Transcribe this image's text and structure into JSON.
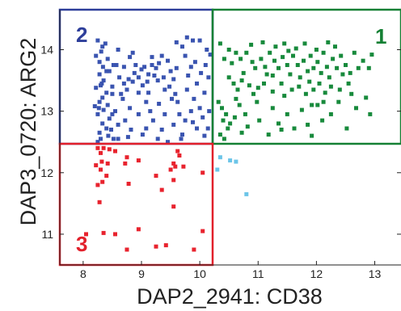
{
  "chart_data": {
    "type": "scatter",
    "xlabel": "DAP2_2941: CD38",
    "ylabel": "DAP3_0720: ARG2",
    "xlim": [
      7.6,
      13.45
    ],
    "ylim": [
      10.5,
      14.65
    ],
    "x_ticks": [
      "8",
      "9",
      "10",
      "11",
      "12",
      "13"
    ],
    "y_ticks": [
      "11",
      "12",
      "13",
      "14"
    ],
    "grid": false,
    "legend": "none",
    "gates": [
      {
        "label": "2",
        "color": "#2d3e9a",
        "x_range": [
          7.6,
          10.22
        ],
        "y_range": [
          12.47,
          14.65
        ],
        "label_pos": "top-left"
      },
      {
        "label": "1",
        "color": "#158034",
        "x_range": [
          10.22,
          13.45
        ],
        "y_range": [
          12.47,
          14.65
        ],
        "label_pos": "top-right"
      },
      {
        "label": "3",
        "color": "#e2202b",
        "x_range": [
          7.6,
          10.22
        ],
        "y_range": [
          10.5,
          12.47
        ],
        "label_pos": "bottom-left"
      }
    ],
    "series": [
      {
        "color": "#3a54b0",
        "points": [
          [
            8.25,
            14.15
          ],
          [
            8.33,
            14.05
          ],
          [
            8.31,
            13.97
          ],
          [
            8.22,
            13.9
          ],
          [
            8.42,
            13.85
          ],
          [
            8.28,
            13.8
          ],
          [
            8.34,
            13.72
          ],
          [
            8.52,
            13.75
          ],
          [
            8.4,
            13.65
          ],
          [
            8.28,
            13.6
          ],
          [
            8.35,
            13.5
          ],
          [
            8.3,
            13.42
          ],
          [
            8.22,
            13.38
          ],
          [
            8.4,
            13.3
          ],
          [
            8.5,
            13.4
          ],
          [
            8.33,
            13.22
          ],
          [
            8.28,
            13.15
          ],
          [
            8.42,
            13.1
          ],
          [
            8.35,
            13.02
          ],
          [
            8.25,
            12.95
          ],
          [
            8.5,
            12.95
          ],
          [
            8.45,
            12.88
          ],
          [
            8.33,
            12.8
          ],
          [
            8.4,
            12.72
          ],
          [
            8.28,
            12.65
          ],
          [
            8.43,
            12.6
          ],
          [
            8.3,
            12.55
          ],
          [
            8.52,
            12.55
          ],
          [
            8.25,
            12.5
          ],
          [
            8.55,
            13.0
          ],
          [
            8.2,
            13.08
          ],
          [
            8.45,
            13.65
          ],
          [
            8.62,
            13.55
          ],
          [
            8.7,
            13.45
          ],
          [
            8.75,
            13.35
          ],
          [
            8.68,
            13.2
          ],
          [
            8.8,
            13.05
          ],
          [
            8.72,
            12.85
          ],
          [
            8.82,
            12.7
          ],
          [
            8.77,
            12.58
          ],
          [
            8.6,
            12.55
          ],
          [
            8.78,
            13.52
          ],
          [
            8.85,
            13.48
          ],
          [
            8.88,
            13.62
          ],
          [
            8.95,
            13.55
          ],
          [
            9.0,
            13.68
          ],
          [
            9.05,
            13.72
          ],
          [
            9.12,
            13.6
          ],
          [
            9.18,
            13.75
          ],
          [
            9.25,
            13.7
          ],
          [
            9.3,
            13.78
          ],
          [
            9.22,
            13.58
          ],
          [
            9.1,
            13.48
          ],
          [
            9.02,
            13.42
          ],
          [
            8.95,
            13.3
          ],
          [
            9.08,
            13.15
          ],
          [
            9.15,
            13.0
          ],
          [
            9.2,
            12.85
          ],
          [
            9.08,
            12.72
          ],
          [
            9.02,
            12.62
          ],
          [
            9.28,
            12.55
          ],
          [
            9.35,
            12.7
          ],
          [
            9.3,
            13.12
          ],
          [
            9.4,
            13.35
          ],
          [
            9.38,
            13.55
          ],
          [
            9.45,
            13.82
          ],
          [
            9.5,
            13.65
          ],
          [
            9.55,
            13.52
          ],
          [
            9.48,
            13.4
          ],
          [
            9.58,
            13.28
          ],
          [
            9.62,
            13.15
          ],
          [
            9.65,
            12.95
          ],
          [
            9.55,
            12.78
          ],
          [
            9.7,
            12.62
          ],
          [
            9.68,
            12.55
          ],
          [
            9.75,
            12.85
          ],
          [
            9.78,
            13.35
          ],
          [
            9.8,
            13.58
          ],
          [
            9.85,
            13.72
          ],
          [
            9.75,
            13.9
          ],
          [
            9.7,
            14.05
          ],
          [
            9.88,
            14.15
          ],
          [
            9.92,
            13.8
          ],
          [
            9.95,
            13.45
          ],
          [
            9.9,
            13.2
          ],
          [
            10.0,
            13.05
          ],
          [
            10.05,
            12.9
          ],
          [
            10.08,
            13.3
          ],
          [
            10.02,
            13.62
          ],
          [
            10.1,
            13.75
          ],
          [
            10.12,
            14.0
          ],
          [
            10.15,
            13.55
          ],
          [
            10.16,
            13.0
          ],
          [
            10.14,
            12.72
          ],
          [
            10.08,
            12.6
          ],
          [
            8.7,
            13.72
          ],
          [
            8.9,
            13.75
          ],
          [
            9.28,
            13.5
          ],
          [
            9.52,
            13.2
          ],
          [
            9.12,
            13.3
          ],
          [
            8.6,
            14.0
          ],
          [
            8.57,
            13.75
          ],
          [
            9.85,
            13.0
          ],
          [
            9.95,
            12.72
          ],
          [
            8.95,
            12.95
          ],
          [
            9.45,
            12.5
          ],
          [
            8.6,
            12.78
          ],
          [
            9.6,
            13.7
          ],
          [
            10.0,
            14.15
          ],
          [
            8.85,
            13.95
          ],
          [
            9.6,
            14.12
          ],
          [
            9.35,
            13.9
          ],
          [
            8.38,
            14.1
          ],
          [
            8.48,
            12.7
          ],
          [
            8.32,
            13.45
          ],
          [
            9.78,
            14.2
          ],
          [
            8.65,
            13.28
          ],
          [
            9.18,
            13.88
          ],
          [
            8.5,
            13.28
          ],
          [
            9.4,
            12.95
          ],
          [
            8.8,
            13.88
          ],
          [
            10.18,
            13.92
          ],
          [
            9.88,
            12.82
          ],
          [
            8.27,
            13.05
          ]
        ]
      },
      {
        "color": "#188a3c",
        "points": [
          [
            10.35,
            14.1
          ],
          [
            10.5,
            14.0
          ],
          [
            10.62,
            13.95
          ],
          [
            10.42,
            13.85
          ],
          [
            10.55,
            13.78
          ],
          [
            10.7,
            13.85
          ],
          [
            10.8,
            13.95
          ],
          [
            10.9,
            13.8
          ],
          [
            10.95,
            13.7
          ],
          [
            11.05,
            13.85
          ],
          [
            11.12,
            13.72
          ],
          [
            11.2,
            13.95
          ],
          [
            11.15,
            13.6
          ],
          [
            11.28,
            13.82
          ],
          [
            11.35,
            13.7
          ],
          [
            11.42,
            13.88
          ],
          [
            11.5,
            13.75
          ],
          [
            11.55,
            13.6
          ],
          [
            11.6,
            13.9
          ],
          [
            11.68,
            13.75
          ],
          [
            11.72,
            13.55
          ],
          [
            11.78,
            13.82
          ],
          [
            11.85,
            13.65
          ],
          [
            11.9,
            13.9
          ],
          [
            11.95,
            13.7
          ],
          [
            12.02,
            13.8
          ],
          [
            12.08,
            13.62
          ],
          [
            12.12,
            13.95
          ],
          [
            12.18,
            13.72
          ],
          [
            12.22,
            13.55
          ],
          [
            12.28,
            13.85
          ],
          [
            12.35,
            13.7
          ],
          [
            12.42,
            13.9
          ],
          [
            12.5,
            13.75
          ],
          [
            12.58,
            13.62
          ],
          [
            12.65,
            13.95
          ],
          [
            12.72,
            13.7
          ],
          [
            12.8,
            13.82
          ],
          [
            12.9,
            13.7
          ],
          [
            12.95,
            13.92
          ],
          [
            10.5,
            13.55
          ],
          [
            10.58,
            13.45
          ],
          [
            10.65,
            13.35
          ],
          [
            10.72,
            13.5
          ],
          [
            10.85,
            13.42
          ],
          [
            10.92,
            13.28
          ],
          [
            11.0,
            13.38
          ],
          [
            11.1,
            13.45
          ],
          [
            11.25,
            13.32
          ],
          [
            11.4,
            13.45
          ],
          [
            11.45,
            13.25
          ],
          [
            11.58,
            13.35
          ],
          [
            11.7,
            13.4
          ],
          [
            11.82,
            13.28
          ],
          [
            11.95,
            13.35
          ],
          [
            12.05,
            13.45
          ],
          [
            12.15,
            13.3
          ],
          [
            12.25,
            13.4
          ],
          [
            12.4,
            13.35
          ],
          [
            12.55,
            13.45
          ],
          [
            10.32,
            13.15
          ],
          [
            10.38,
            13.05
          ],
          [
            10.45,
            12.95
          ],
          [
            10.4,
            12.85
          ],
          [
            10.52,
            12.8
          ],
          [
            10.48,
            12.72
          ],
          [
            10.35,
            12.62
          ],
          [
            10.42,
            12.55
          ],
          [
            10.6,
            12.9
          ],
          [
            10.68,
            13.1
          ],
          [
            10.78,
            12.95
          ],
          [
            10.82,
            12.75
          ],
          [
            10.72,
            12.65
          ],
          [
            11.02,
            12.85
          ],
          [
            11.18,
            12.62
          ],
          [
            11.25,
            13.05
          ],
          [
            11.35,
            12.8
          ],
          [
            11.5,
            12.95
          ],
          [
            11.62,
            12.72
          ],
          [
            11.75,
            13.02
          ],
          [
            11.85,
            12.78
          ],
          [
            11.92,
            12.6
          ],
          [
            12.02,
            13.1
          ],
          [
            12.1,
            12.85
          ],
          [
            12.25,
            12.95
          ],
          [
            12.38,
            13.15
          ],
          [
            12.52,
            12.72
          ],
          [
            12.68,
            13.05
          ],
          [
            12.92,
            12.95
          ],
          [
            12.85,
            13.22
          ],
          [
            11.3,
            14.05
          ],
          [
            11.8,
            14.1
          ],
          [
            12.0,
            14.0
          ],
          [
            11.45,
            14.1
          ],
          [
            10.88,
            14.08
          ],
          [
            11.65,
            14.02
          ],
          [
            12.32,
            14.05
          ],
          [
            11.08,
            14.12
          ],
          [
            10.75,
            13.62
          ],
          [
            11.88,
            13.48
          ],
          [
            12.2,
            14.12
          ],
          [
            11.52,
            13.98
          ],
          [
            10.62,
            13.2
          ],
          [
            12.45,
            13.6
          ],
          [
            11.25,
            13.58
          ],
          [
            11.92,
            13.1
          ],
          [
            10.98,
            13.15
          ],
          [
            12.12,
            13.15
          ],
          [
            12.6,
            13.28
          ],
          [
            11.4,
            12.7
          ]
        ]
      },
      {
        "color": "#e8232e",
        "points": [
          [
            8.25,
            12.4
          ],
          [
            8.35,
            12.4
          ],
          [
            8.45,
            12.38
          ],
          [
            8.3,
            12.32
          ],
          [
            8.55,
            12.35
          ],
          [
            8.32,
            12.18
          ],
          [
            8.22,
            12.12
          ],
          [
            8.42,
            12.15
          ],
          [
            8.3,
            12.05
          ],
          [
            8.4,
            11.95
          ],
          [
            8.33,
            11.85
          ],
          [
            8.25,
            11.8
          ],
          [
            8.75,
            12.25
          ],
          [
            8.72,
            12.15
          ],
          [
            8.78,
            11.82
          ],
          [
            8.95,
            12.2
          ],
          [
            9.25,
            11.95
          ],
          [
            9.55,
            12.15
          ],
          [
            9.62,
            12.35
          ],
          [
            9.65,
            12.28
          ],
          [
            9.58,
            12.1
          ],
          [
            9.72,
            12.1
          ],
          [
            9.5,
            12.05
          ],
          [
            9.55,
            11.88
          ],
          [
            9.35,
            11.72
          ],
          [
            9.55,
            11.45
          ],
          [
            10.05,
            12.0
          ],
          [
            8.28,
            11.52
          ],
          [
            8.05,
            11.0
          ],
          [
            8.35,
            11.02
          ],
          [
            8.55,
            11.0
          ],
          [
            8.75,
            10.75
          ],
          [
            8.95,
            11.08
          ],
          [
            9.25,
            10.8
          ],
          [
            9.42,
            10.82
          ],
          [
            9.9,
            10.75
          ],
          [
            10.05,
            11.05
          ]
        ]
      },
      {
        "color": "#6cc5e8",
        "points": [
          [
            10.35,
            12.25
          ],
          [
            10.52,
            12.2
          ],
          [
            10.62,
            12.18
          ],
          [
            10.3,
            12.05
          ],
          [
            10.8,
            11.65
          ]
        ]
      }
    ]
  }
}
